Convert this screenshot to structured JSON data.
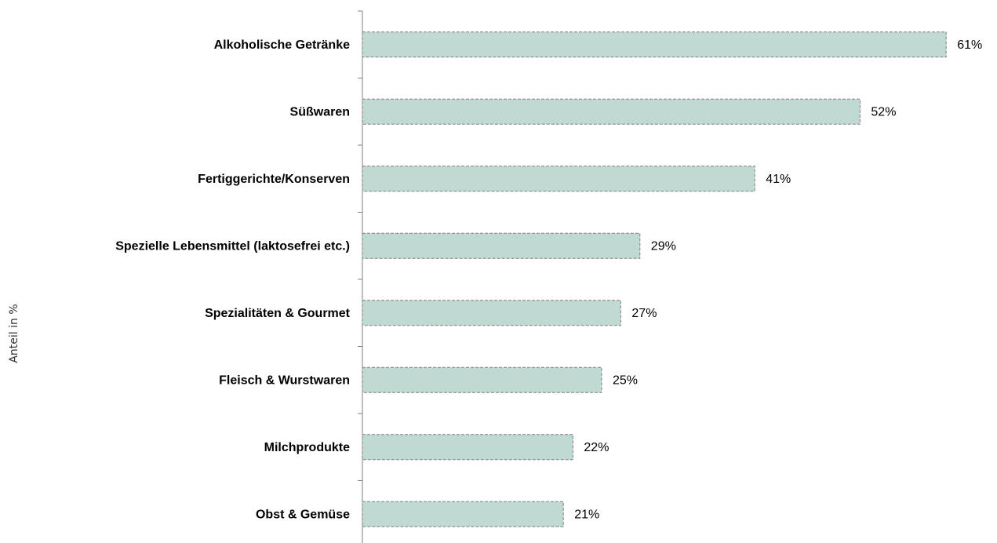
{
  "chart_data": {
    "type": "bar",
    "orientation": "horizontal",
    "y_axis_label": "Anteil in %",
    "categories": [
      "Alkoholische Getränke",
      "Süßwaren",
      "Fertiggerichte/Konserven",
      "Spezielle Lebensmittel (laktosefrei etc.)",
      "Spezialitäten & Gourmet",
      "Fleisch & Wurstwaren",
      "Milchprodukte",
      "Obst & Gemüse"
    ],
    "values": [
      61,
      52,
      41,
      29,
      27,
      25,
      22,
      21
    ],
    "value_labels": [
      "61%",
      "52%",
      "41%",
      "29%",
      "27%",
      "25%",
      "22%",
      "21%"
    ],
    "color": "#c0d9d3",
    "edge_color": "#808080"
  }
}
